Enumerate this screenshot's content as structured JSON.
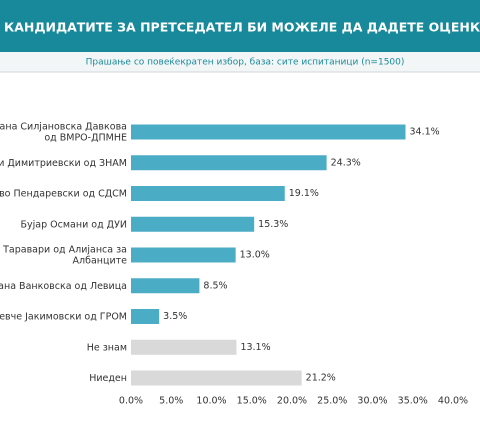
{
  "chart_data": {
    "type": "barh",
    "title": "КАНДИДАТИТЕ ЗА ПРЕТСЕДАТЕЛ БИ МОЖЕЛЕ ДА ДАДЕТЕ ОЦЕНКА ДЕКА Е ЦВРСТ И",
    "subtitle": "Прашање со повеќекратен избор, база: сите испитаници (n=1500)",
    "categories": [
      "ана Силјановска Давкова\nод ВМРО-ДПМНЕ",
      "и Димитриевски од ЗНАМ",
      "во Пендаревски од СДСМ",
      "Бујар Османи од ДУИ",
      "Таравари од Алијанса за\nАлбанците",
      "ана Ванковска од Левица",
      "евче Јакимовски од ГРОМ",
      "Не знам",
      "Ниеден"
    ],
    "values": [
      34.1,
      24.3,
      19.1,
      15.3,
      13.0,
      8.5,
      3.5,
      13.1,
      21.2
    ],
    "value_labels": [
      "34.1%",
      "24.3%",
      "19.1%",
      "15.3%",
      "13.0%",
      "8.5%",
      "3.5%",
      "13.1%",
      "21.2%"
    ],
    "colors": [
      "#4bacc6",
      "#4bacc6",
      "#4bacc6",
      "#4bacc6",
      "#4bacc6",
      "#4bacc6",
      "#4bacc6",
      "#d9d9d9",
      "#d9d9d9"
    ],
    "xlim": [
      0,
      40
    ],
    "xticks": [
      {
        "value": 0,
        "label": "0.0%"
      },
      {
        "value": 5,
        "label": "5.0%"
      },
      {
        "value": 10,
        "label": "10.0%"
      },
      {
        "value": 15,
        "label": "15.0%"
      },
      {
        "value": 20,
        "label": "20.0%"
      },
      {
        "value": 25,
        "label": "25.0%"
      },
      {
        "value": 30,
        "label": "30.0%"
      },
      {
        "value": 35,
        "label": "35.0%"
      },
      {
        "value": 40,
        "label": "40.0%"
      }
    ]
  }
}
